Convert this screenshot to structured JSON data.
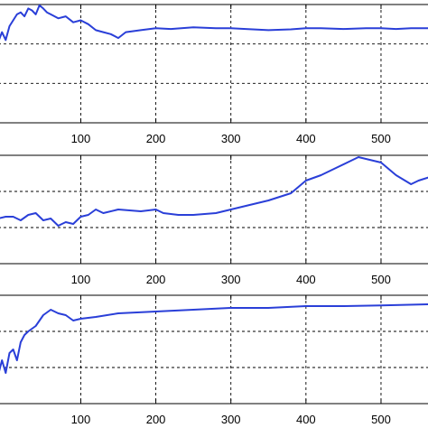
{
  "colors": {
    "series": "#2a3fd8",
    "axis": "#000000",
    "background": "#ffffff"
  },
  "chart_data": [
    {
      "type": "line",
      "title": "",
      "xlabel": "",
      "ylabel": "",
      "xlim": [
        -10,
        565
      ],
      "ylim": [
        0,
        3
      ],
      "xticks": [
        100,
        200,
        300,
        400,
        500
      ],
      "xtick_labels": [
        "100",
        "200",
        "300",
        "400",
        "500"
      ],
      "yticks": [
        1,
        2
      ],
      "grid": true,
      "series": [
        {
          "x": [
            -10,
            -5,
            0,
            5,
            10,
            15,
            20,
            25,
            30,
            35,
            40,
            45,
            50,
            55,
            60,
            70,
            80,
            90,
            100,
            110,
            120,
            130,
            140,
            150,
            160,
            180,
            200,
            220,
            250,
            280,
            300,
            320,
            350,
            380,
            400,
            420,
            450,
            480,
            500,
            520,
            540,
            565
          ],
          "y": [
            2.05,
            2.3,
            2.1,
            2.45,
            2.6,
            2.75,
            2.8,
            2.7,
            2.9,
            2.85,
            2.75,
            2.98,
            2.9,
            2.8,
            2.75,
            2.65,
            2.7,
            2.55,
            2.6,
            2.5,
            2.35,
            2.3,
            2.25,
            2.15,
            2.3,
            2.35,
            2.4,
            2.38,
            2.42,
            2.4,
            2.4,
            2.38,
            2.35,
            2.37,
            2.4,
            2.4,
            2.38,
            2.4,
            2.4,
            2.38,
            2.4,
            2.4
          ]
        }
      ]
    },
    {
      "type": "line",
      "title": "",
      "xlabel": "",
      "ylabel": "",
      "xlim": [
        -10,
        565
      ],
      "ylim": [
        0,
        3
      ],
      "xticks": [
        100,
        200,
        300,
        400,
        500
      ],
      "xtick_labels": [
        "100",
        "200",
        "300",
        "400",
        "500"
      ],
      "yticks": [
        1,
        2
      ],
      "grid": true,
      "series": [
        {
          "x": [
            -10,
            0,
            10,
            20,
            30,
            40,
            50,
            60,
            70,
            80,
            90,
            100,
            110,
            120,
            130,
            150,
            180,
            200,
            210,
            230,
            250,
            280,
            300,
            320,
            350,
            380,
            400,
            420,
            440,
            460,
            470,
            480,
            500,
            520,
            540,
            550,
            565
          ],
          "y": [
            1.25,
            1.3,
            1.3,
            1.2,
            1.35,
            1.4,
            1.2,
            1.25,
            1.05,
            1.15,
            1.1,
            1.3,
            1.35,
            1.5,
            1.4,
            1.5,
            1.45,
            1.5,
            1.4,
            1.35,
            1.35,
            1.4,
            1.5,
            1.6,
            1.75,
            1.95,
            2.3,
            2.45,
            2.65,
            2.85,
            2.95,
            2.9,
            2.8,
            2.45,
            2.2,
            2.3,
            2.4
          ]
        }
      ]
    },
    {
      "type": "line",
      "title": "",
      "xlabel": "",
      "ylabel": "",
      "xlim": [
        -10,
        565
      ],
      "ylim": [
        0,
        3
      ],
      "xticks": [
        100,
        200,
        300,
        400,
        500
      ],
      "xtick_labels": [
        "100",
        "200",
        "300",
        "400",
        "500"
      ],
      "yticks": [
        1,
        2
      ],
      "grid": true,
      "series": [
        {
          "x": [
            -10,
            -5,
            0,
            5,
            10,
            15,
            20,
            25,
            30,
            40,
            50,
            60,
            70,
            80,
            90,
            100,
            120,
            150,
            200,
            250,
            300,
            350,
            400,
            450,
            500,
            565
          ],
          "y": [
            0.8,
            1.2,
            0.85,
            1.4,
            1.5,
            1.2,
            1.7,
            1.9,
            2.0,
            2.15,
            2.45,
            2.6,
            2.5,
            2.45,
            2.3,
            2.35,
            2.4,
            2.5,
            2.55,
            2.6,
            2.65,
            2.65,
            2.7,
            2.7,
            2.72,
            2.75
          ]
        }
      ]
    }
  ]
}
